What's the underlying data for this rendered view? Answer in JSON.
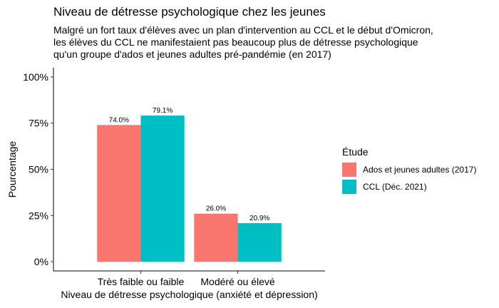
{
  "chart_data": {
    "type": "bar",
    "title": "Niveau de détresse psychologique chez les jeunes",
    "subtitle": [
      "Malgré un fort taux d'élèves avec un plan d'intervention au CCL et le début d'Omicron,",
      "les élèves du CCL ne manifestaient pas beaucoup plus de détresse psychologique",
      "qu'un groupe d'ados et jeunes adultes pré-pandémie (en 2017)"
    ],
    "xlabel": "Niveau de détresse psychologique (anxiété et dépression)",
    "ylabel": "Pourcentage",
    "categories": [
      "Très faible ou faible",
      "Modéré ou élevé"
    ],
    "series": [
      {
        "name": "Ados et jeunes adultes (2017)",
        "color": "#F8766D",
        "values": [
          74.0,
          26.0
        ],
        "labels": [
          "74.0%",
          "26.0%"
        ]
      },
      {
        "name": "CCL (Déc. 2021)",
        "color": "#00BFC4",
        "values": [
          79.1,
          20.9
        ],
        "labels": [
          "79.1%",
          "20.9%"
        ]
      }
    ],
    "ylim": [
      0,
      100
    ],
    "yticks": [
      0,
      25,
      50,
      75,
      100
    ],
    "ytick_labels": [
      "0%",
      "25%",
      "50%",
      "75%",
      "100%"
    ],
    "legend": {
      "title": "Étude",
      "position": "right"
    },
    "grid": false
  }
}
